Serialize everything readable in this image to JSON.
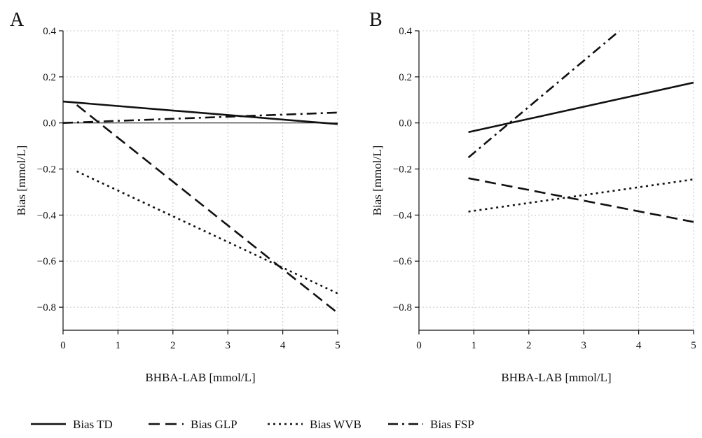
{
  "chart_data": [
    {
      "type": "line",
      "panel_label": "A",
      "xlabel": "BHBA-LAB [mmol/L]",
      "ylabel": "Bias [mmol/L]",
      "xlim": [
        0,
        5
      ],
      "ylim": [
        -0.9,
        0.4
      ],
      "xticks": [
        0,
        1,
        2,
        3,
        4,
        5
      ],
      "yticks": [
        0.4,
        0.2,
        0.0,
        -0.2,
        -0.4,
        -0.6,
        -0.8
      ],
      "ytick_labels": [
        "0.4",
        "0.2",
        "0.0",
        "−0.2",
        "−0.4",
        "−0.6",
        "−0.8"
      ],
      "grid": true,
      "reference_line": {
        "y": 0.0,
        "x": [
          0.1,
          5.0
        ]
      },
      "series": [
        {
          "name": "Bias TD",
          "style": "solid",
          "x": [
            0.0,
            5.0
          ],
          "y": [
            0.093,
            -0.005
          ]
        },
        {
          "name": "Bias GLP",
          "style": "dashed",
          "x": [
            0.25,
            5.0
          ],
          "y": [
            0.078,
            -0.825
          ]
        },
        {
          "name": "Bias WVB",
          "style": "dotted",
          "x": [
            0.25,
            5.0
          ],
          "y": [
            -0.21,
            -0.74
          ]
        },
        {
          "name": "Bias FSP",
          "style": "dashdot",
          "x": [
            0.0,
            5.0
          ],
          "y": [
            0.0,
            0.045
          ]
        }
      ]
    },
    {
      "type": "line",
      "panel_label": "B",
      "xlabel": "BHBA-LAB [mmol/L]",
      "ylabel": "Bias [mmol/L]",
      "xlim": [
        0,
        5
      ],
      "ylim": [
        -0.9,
        0.4
      ],
      "xticks": [
        0,
        1,
        2,
        3,
        4,
        5
      ],
      "yticks": [
        0.4,
        0.2,
        0.0,
        -0.2,
        -0.4,
        -0.6,
        -0.8
      ],
      "ytick_labels": [
        "0.4",
        "0.2",
        "0.0",
        "−0.2",
        "−0.4",
        "−0.6",
        "−0.8"
      ],
      "grid": true,
      "series": [
        {
          "name": "Bias TD",
          "style": "solid",
          "x": [
            0.9,
            5.0
          ],
          "y": [
            -0.04,
            0.175
          ]
        },
        {
          "name": "Bias GLP",
          "style": "dashed",
          "x": [
            0.9,
            5.0
          ],
          "y": [
            -0.24,
            -0.43
          ]
        },
        {
          "name": "Bias WVB",
          "style": "dotted",
          "x": [
            0.9,
            5.0
          ],
          "y": [
            -0.385,
            -0.245
          ]
        },
        {
          "name": "Bias FSP",
          "style": "dashdot",
          "x": [
            0.9,
            3.65
          ],
          "y": [
            -0.15,
            0.4
          ]
        }
      ]
    }
  ],
  "legend": {
    "placement": "bottom",
    "items": [
      {
        "name": "Bias TD",
        "style": "solid"
      },
      {
        "name": "Bias GLP",
        "style": "dashed"
      },
      {
        "name": "Bias WVB",
        "style": "dotted"
      },
      {
        "name": "Bias FSP",
        "style": "dashdot"
      }
    ]
  }
}
